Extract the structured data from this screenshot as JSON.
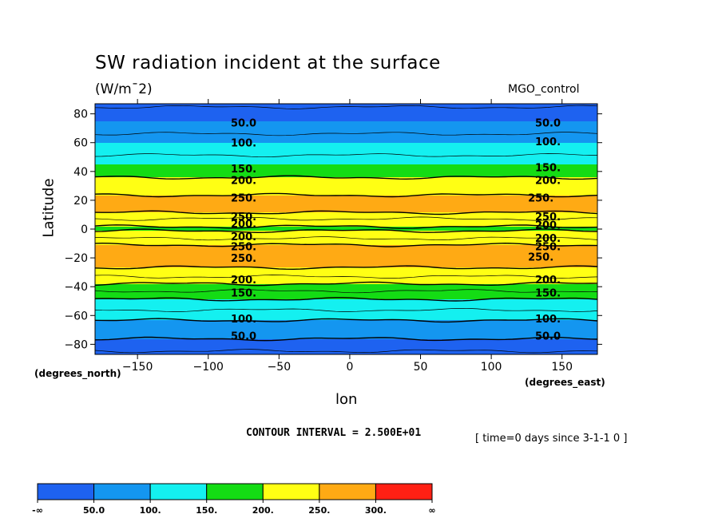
{
  "chart_data": {
    "type": "heatmap",
    "title": "SW radiation incident at the surface",
    "units": "(W/m^2)",
    "units_display": "(W/m¯2)",
    "dataset": "MGO_control",
    "xlabel": "lon",
    "xlabel_units": "(degrees_east)",
    "ylabel": "Latitude",
    "ylabel_units": "(degrees_north)",
    "xlim": [
      -180,
      175
    ],
    "ylim": [
      -87,
      87
    ],
    "x_ticks": [
      -150,
      -100,
      -50,
      0,
      50,
      100,
      150
    ],
    "x_tick_labels": [
      "−150",
      "−100",
      "−50",
      "0",
      "50",
      "100",
      "150"
    ],
    "y_ticks": [
      -80,
      -60,
      -40,
      -20,
      0,
      20,
      40,
      60,
      80
    ],
    "y_tick_labels": [
      "−80",
      "−60",
      "−40",
      "−20",
      "0",
      "20",
      "40",
      "60",
      "80"
    ],
    "contour_interval": "CONTOUR INTERVAL = 2.500E+01",
    "time_note": "[ time=0 days since 3-1-1 0 ]",
    "zonal_profile": {
      "lat": [
        -87,
        -80,
        -75,
        -70,
        -65,
        -60,
        -55,
        -50,
        -45,
        -40,
        -35,
        -30,
        -25,
        -20,
        -15,
        -10,
        -5,
        0,
        5,
        10,
        15,
        20,
        25,
        30,
        35,
        40,
        45,
        50,
        55,
        60,
        65,
        70,
        75,
        80,
        87
      ],
      "value": [
        20,
        35,
        55,
        75,
        95,
        110,
        130,
        145,
        165,
        190,
        215,
        240,
        255,
        262,
        258,
        248,
        215,
        195,
        210,
        245,
        262,
        262,
        245,
        225,
        205,
        175,
        150,
        130,
        110,
        100,
        80,
        58,
        50,
        35,
        20
      ]
    },
    "contour_labels": [
      {
        "text": "50.0",
        "lon": -75,
        "lat": 74
      },
      {
        "text": "50.0",
        "lon": 140,
        "lat": 74
      },
      {
        "text": "100.",
        "lon": -75,
        "lat": 60
      },
      {
        "text": "100.",
        "lon": 140,
        "lat": 61
      },
      {
        "text": "150.",
        "lon": -75,
        "lat": 42
      },
      {
        "text": "150.",
        "lon": 140,
        "lat": 43
      },
      {
        "text": "200.",
        "lon": -75,
        "lat": 34
      },
      {
        "text": "200.",
        "lon": 140,
        "lat": 34
      },
      {
        "text": "250.",
        "lon": -75,
        "lat": 22
      },
      {
        "text": "250.",
        "lon": 135,
        "lat": 22
      },
      {
        "text": "250.",
        "lon": -75,
        "lat": 9
      },
      {
        "text": "250.",
        "lon": 140,
        "lat": 9
      },
      {
        "text": "200.",
        "lon": -75,
        "lat": 4
      },
      {
        "text": "200.",
        "lon": 140,
        "lat": 3
      },
      {
        "text": "200.",
        "lon": -75,
        "lat": -5
      },
      {
        "text": "200.",
        "lon": 140,
        "lat": -6
      },
      {
        "text": "250.",
        "lon": -75,
        "lat": -12
      },
      {
        "text": "250.",
        "lon": 140,
        "lat": -12
      },
      {
        "text": "250.",
        "lon": -75,
        "lat": -20
      },
      {
        "text": "250.",
        "lon": 135,
        "lat": -19
      },
      {
        "text": "200.",
        "lon": -75,
        "lat": -35
      },
      {
        "text": "200.",
        "lon": 140,
        "lat": -35
      },
      {
        "text": "150.",
        "lon": -75,
        "lat": -44
      },
      {
        "text": "150.",
        "lon": 140,
        "lat": -44
      },
      {
        "text": "100.",
        "lon": -75,
        "lat": -62
      },
      {
        "text": "100.",
        "lon": 140,
        "lat": -62
      },
      {
        "text": "50.0",
        "lon": -75,
        "lat": -74
      },
      {
        "text": "50.0",
        "lon": 140,
        "lat": -74
      }
    ],
    "colorbar": {
      "levels": [
        "-∞",
        "50.0",
        "100.",
        "150.",
        "200.",
        "250.",
        "300.",
        "∞"
      ],
      "colors": [
        "#1e62f0",
        "#1496f0",
        "#14f0f0",
        "#14dc14",
        "#ffff14",
        "#ffaa14",
        "#ff2014"
      ]
    }
  }
}
